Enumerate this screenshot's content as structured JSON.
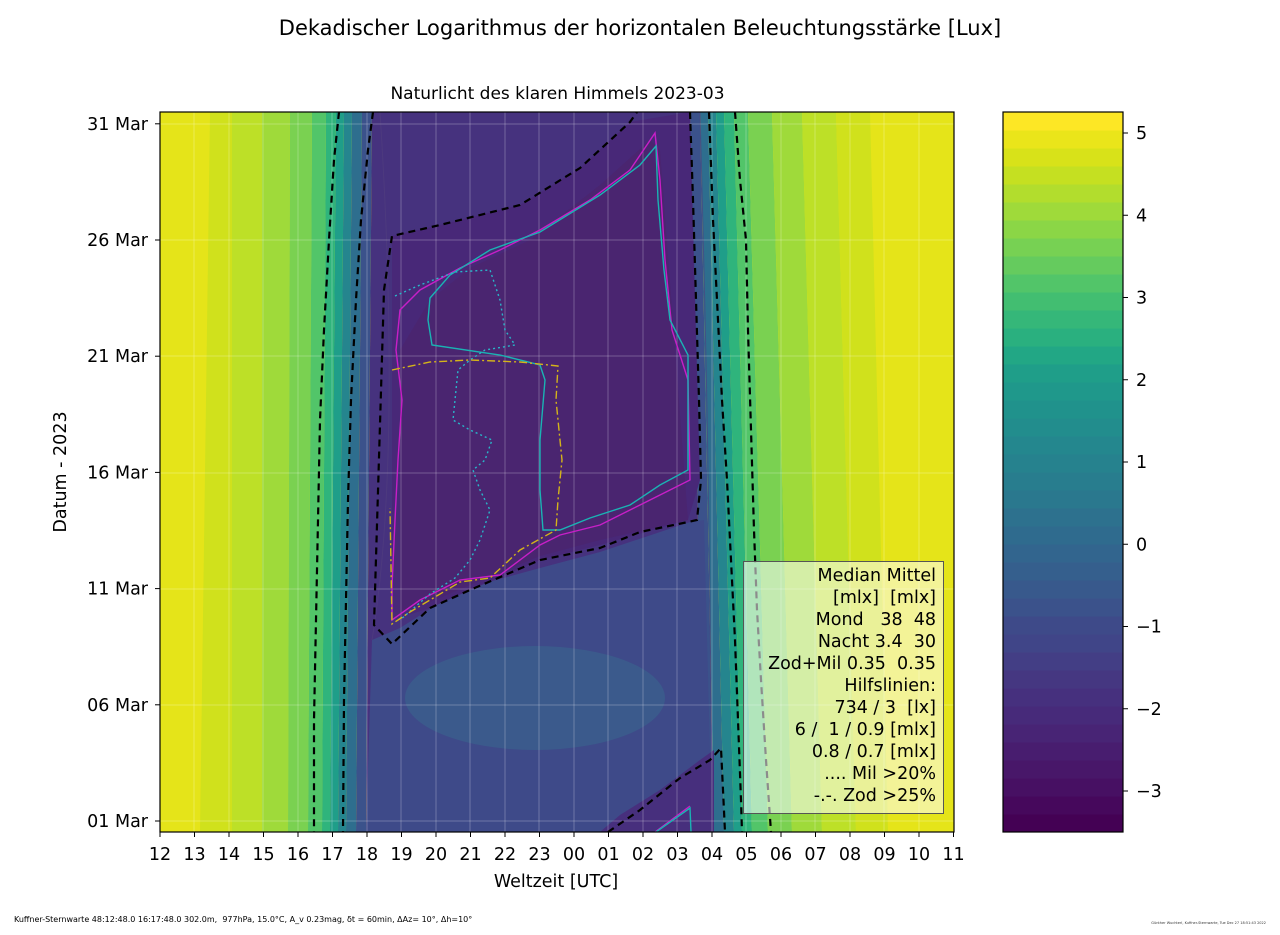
{
  "figure": {
    "suptitle": "Dekadischer Logarithmus der horizontalen Beleuchtungsstärke [Lux]",
    "subtitle": "Naturlicht des klaren Himmels 2023-03",
    "footer_left": "Kuffner-Sternwarte 48:12:48.0 16:17:48.0 302.0m,  977hPa, 15.0°C, A_v 0.23mag, δt = 60min, ΔAz= 10°, Δh=10°",
    "footer_right": "Günther Wuchterl, Kuffner-Sternwarte, Tue Dec 27 18:51:43 2022"
  },
  "legend": {
    "lines": [
      "Median Mittel",
      "[mlx]  [mlx]",
      "Mond   38  48",
      "Nacht 3.4  30",
      "Zod+Mil 0.35  0.35",
      "Hilfslinien:",
      "734 / 3  [lx]",
      "6 /  1 / 0.9 [mlx]",
      "0.8 / 0.7 [mlx]",
      ".... Mil >20%",
      "-.-. Zod >25%"
    ]
  },
  "chart_data": {
    "type": "heatmap",
    "title": "Naturlicht des klaren Himmels 2023-03",
    "xlabel": "Weltzeit [UTC]",
    "ylabel": "Datum - 2023",
    "xticks": [
      "12",
      "13",
      "14",
      "15",
      "16",
      "17",
      "18",
      "19",
      "20",
      "21",
      "22",
      "23",
      "00",
      "01",
      "02",
      "03",
      "04",
      "05",
      "06",
      "07",
      "08",
      "09",
      "10",
      "11"
    ],
    "yticks": [
      "01 Mar",
      "06 Mar",
      "11 Mar",
      "16 Mar",
      "21 Mar",
      "26 Mar",
      "31 Mar"
    ],
    "colorbar": {
      "ticks": [
        "5",
        "4",
        "3",
        "2",
        "1",
        "0",
        "−1",
        "−2",
        "−3"
      ],
      "range": [
        -3.5,
        5.25
      ],
      "colormap": "viridis"
    },
    "grid": true,
    "legend_placement": "lower-right",
    "contour_levels": [
      {
        "label": "734 / 3  [lx]",
        "style": "black dashed"
      },
      {
        "label": "6 /  1 / 0.9 [mlx]",
        "style": "magenta / cyan solid"
      },
      {
        "label": ".... Mil >20%",
        "style": "cyan dotted"
      },
      {
        "label": "-.-. Zod >25%",
        "style": "yellow dash-dot"
      }
    ]
  }
}
